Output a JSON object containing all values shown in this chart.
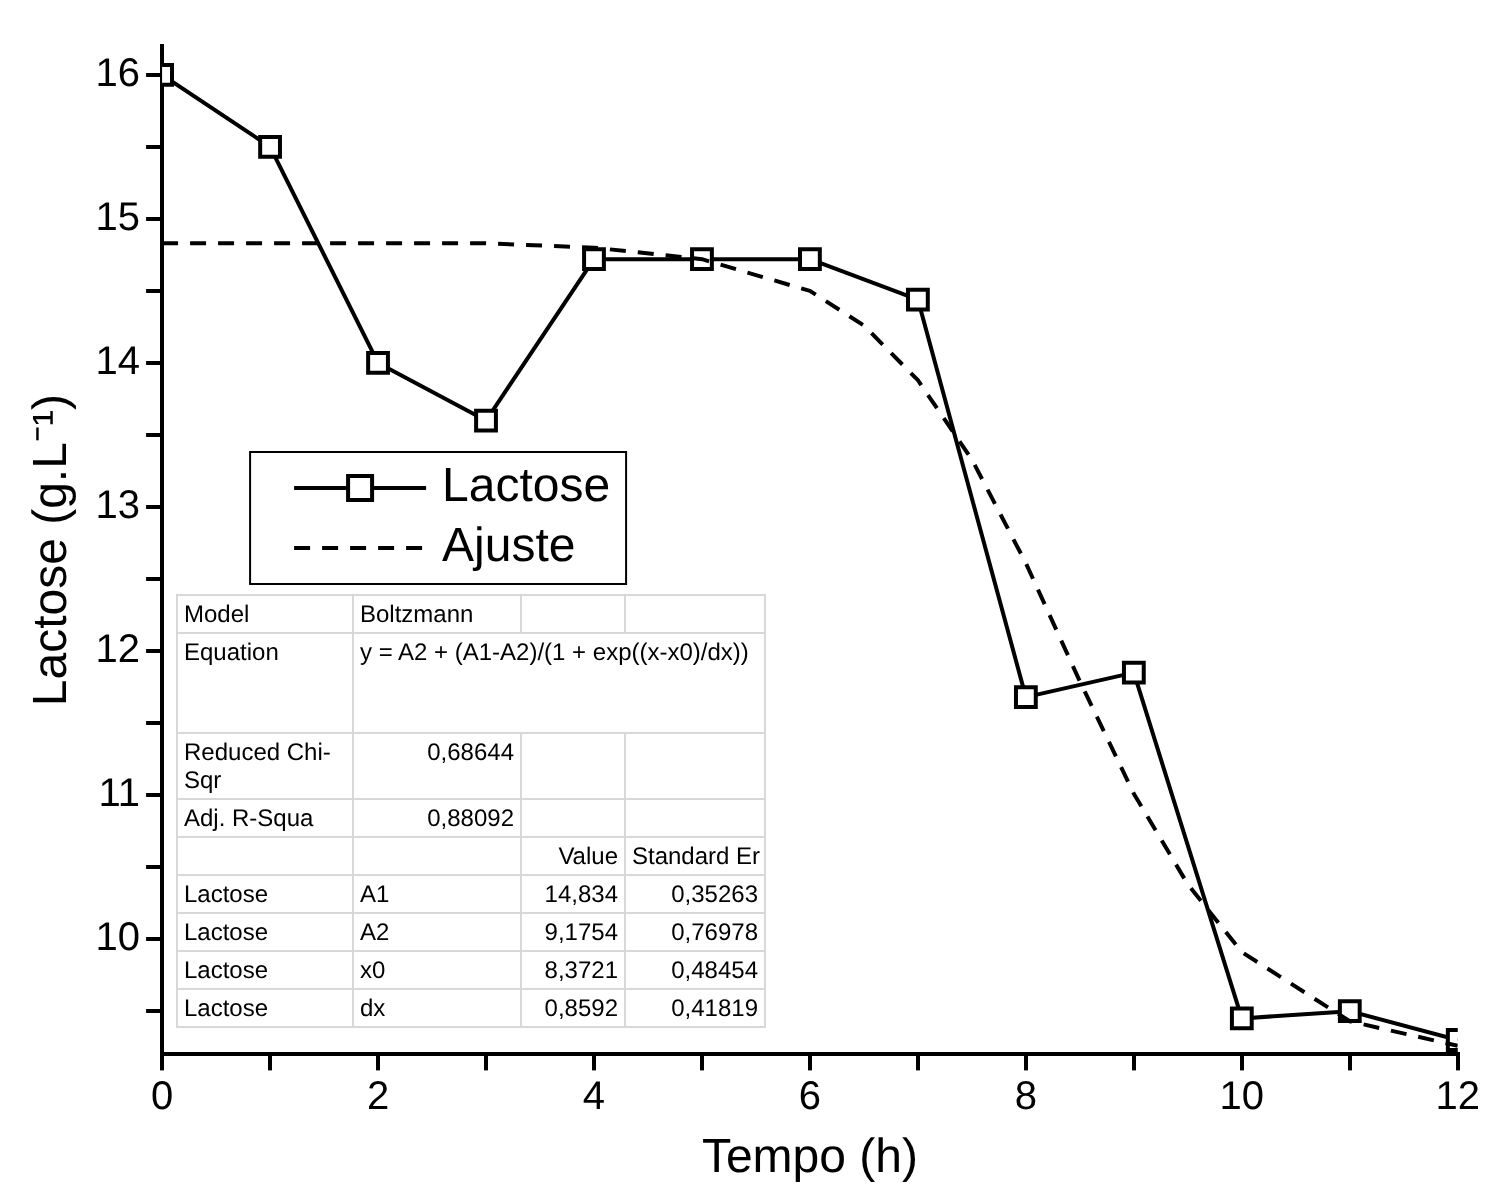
{
  "chart_data": {
    "type": "line",
    "xlabel": "Tempo (h)",
    "ylabel": "Lactose (g.L⁻¹)",
    "x": [
      0,
      1,
      2,
      3,
      4,
      5,
      6,
      7,
      8,
      9,
      10,
      11,
      12
    ],
    "series": [
      {
        "name": "Lactose",
        "color": "#000000",
        "marker": "square",
        "line_style": "solid",
        "values": [
          16,
          15.5,
          14,
          13.6,
          14.72,
          14.72,
          14.72,
          14.44,
          11.68,
          11.85,
          9.45,
          9.5,
          9.3
        ]
      },
      {
        "name": "Ajuste",
        "color": "#000000",
        "marker": "none",
        "line_style": "dashed",
        "x": [
          0,
          1,
          2,
          3,
          4,
          5,
          6,
          6.5,
          7,
          7.5,
          8,
          8.5,
          9,
          9.5,
          10,
          11,
          12
        ],
        "values": [
          14.83,
          14.83,
          14.83,
          14.83,
          14.8,
          14.72,
          14.5,
          14.26,
          13.88,
          13.33,
          12.61,
          11.79,
          11.01,
          10.38,
          9.91,
          9.43,
          9.26
        ]
      }
    ],
    "xlim": [
      0,
      12
    ],
    "xticks": [
      0,
      {
        "value": 1,
        "label": null
      },
      2,
      {
        "value": 3,
        "label": null
      },
      4,
      {
        "value": 5,
        "label": null
      },
      6,
      {
        "value": 7,
        "label": null
      },
      8,
      {
        "value": 9,
        "label": null
      },
      10,
      {
        "value": 11,
        "label": null
      },
      12
    ],
    "ylim": [
      9.2,
      16.2
    ],
    "yticks": [
      {
        "value": 9.5,
        "label": null
      },
      10,
      {
        "value": 10.5,
        "label": null
      },
      11,
      {
        "value": 11.5,
        "label": null
      },
      12,
      {
        "value": 12.5,
        "label": null
      },
      13,
      {
        "value": 13.5,
        "label": null
      },
      14,
      {
        "value": 14.5,
        "label": null
      },
      15,
      {
        "value": 15.5,
        "label": null
      },
      16
    ],
    "grid": false,
    "legend": "left",
    "annotations": [
      "Model",
      "Boltzmann",
      "Equation",
      "y = A2 + (A1-A2)/(1 + exp((x-x0)/dx))",
      "Reduced Chi-Sqr",
      "0,68644",
      "Adj. R-Squa",
      "0,88092",
      "Value",
      "Standard Er",
      "Lactose",
      "A1",
      "14,834",
      "0,35263",
      "Lactose",
      "A2",
      "9,1754",
      "0,76978",
      "Lactose",
      "x0",
      "8,3721",
      "0,48454",
      "Lactose",
      "dx",
      "0,8592",
      "0,41819"
    ]
  }
}
